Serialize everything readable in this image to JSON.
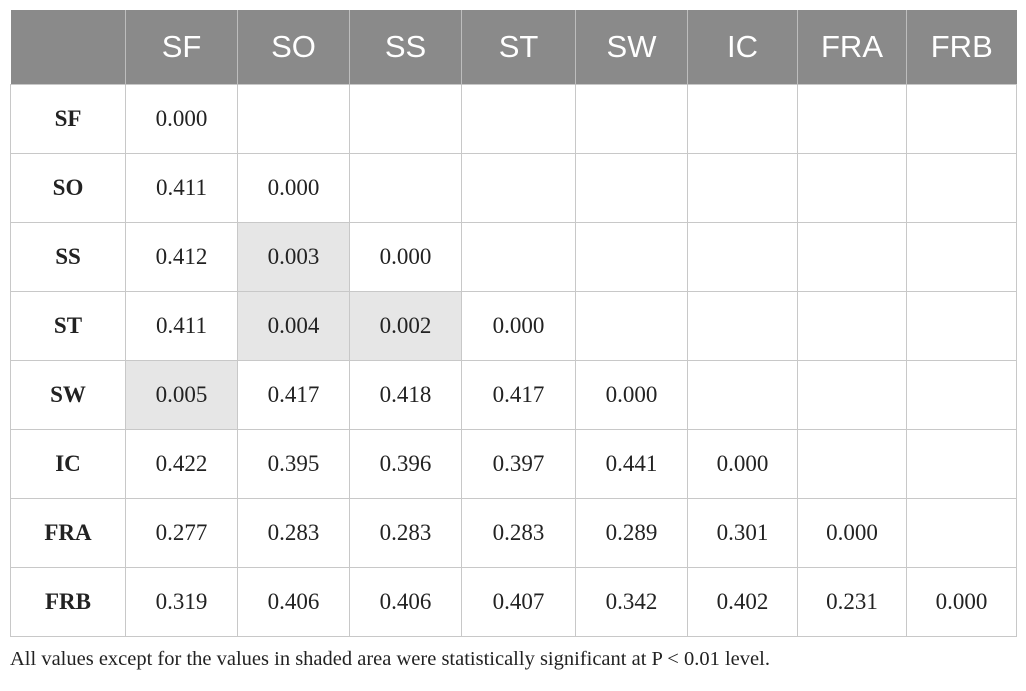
{
  "table": {
    "columns": [
      "SF",
      "SO",
      "SS",
      "ST",
      "SW",
      "IC",
      "FRA",
      "FRB"
    ],
    "rows": [
      {
        "label": "SF",
        "cells": [
          {
            "text": "0.000"
          }
        ]
      },
      {
        "label": "SO",
        "cells": [
          {
            "text": "0.411"
          },
          {
            "text": "0.000"
          }
        ]
      },
      {
        "label": "SS",
        "cells": [
          {
            "text": "0.412"
          },
          {
            "text": "0.003",
            "shaded": true
          },
          {
            "text": "0.000"
          }
        ]
      },
      {
        "label": "ST",
        "cells": [
          {
            "text": "0.411"
          },
          {
            "text": "0.004",
            "shaded": true
          },
          {
            "text": "0.002",
            "shaded": true
          },
          {
            "text": "0.000"
          }
        ]
      },
      {
        "label": "SW",
        "cells": [
          {
            "text": "0.005",
            "shaded": true
          },
          {
            "text": "0.417"
          },
          {
            "text": "0.418"
          },
          {
            "text": "0.417"
          },
          {
            "text": "0.000"
          }
        ]
      },
      {
        "label": "IC",
        "cells": [
          {
            "text": "0.422"
          },
          {
            "text": "0.395"
          },
          {
            "text": "0.396"
          },
          {
            "text": "0.397"
          },
          {
            "text": "0.441"
          },
          {
            "text": "0.000"
          }
        ]
      },
      {
        "label": "FRA",
        "cells": [
          {
            "text": "0.277"
          },
          {
            "text": "0.283"
          },
          {
            "text": "0.283"
          },
          {
            "text": "0.283"
          },
          {
            "text": "0.289"
          },
          {
            "text": "0.301"
          },
          {
            "text": "0.000"
          }
        ]
      },
      {
        "label": "FRB",
        "cells": [
          {
            "text": "0.319"
          },
          {
            "text": "0.406"
          },
          {
            "text": "0.406"
          },
          {
            "text": "0.407"
          },
          {
            "text": "0.342"
          },
          {
            "text": "0.402"
          },
          {
            "text": "0.231"
          },
          {
            "text": "0.000"
          }
        ]
      }
    ]
  },
  "footnote": "All values except for the values in shaded area were statistically significant at P < 0.01 level."
}
